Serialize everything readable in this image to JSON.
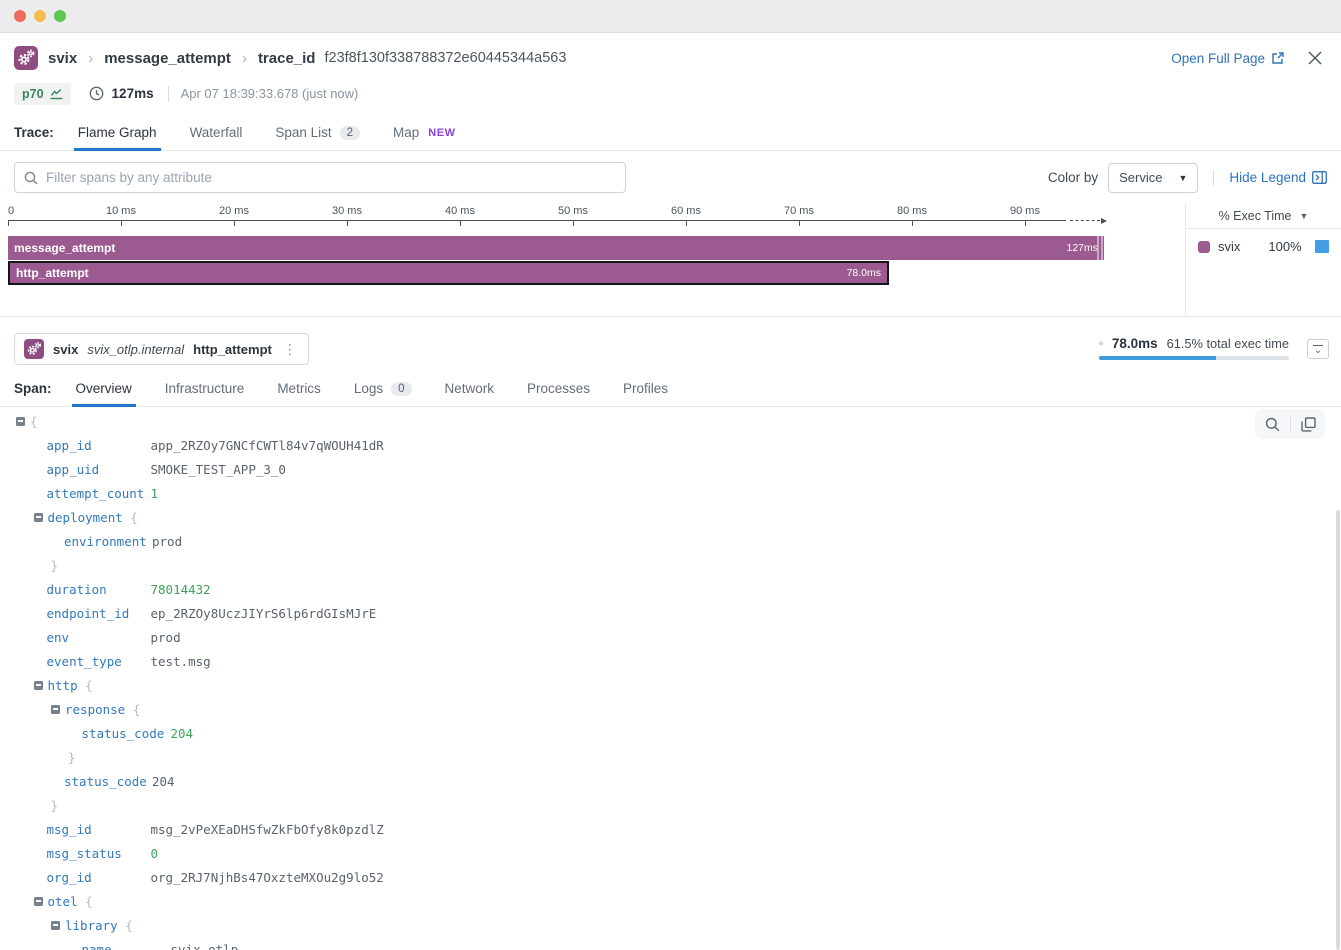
{
  "window": {
    "buttons": [
      "close",
      "minimize",
      "zoom"
    ]
  },
  "breadcrumb": {
    "service": "svix",
    "operation": "message_attempt",
    "trace_label": "trace_id",
    "trace_id": "f23f8f130f338788372e60445344a563"
  },
  "actions": {
    "open_full_page": "Open Full Page"
  },
  "summary": {
    "percentile": "p70",
    "duration": "127ms",
    "timestamp": "Apr 07 18:39:33.678 (just now)"
  },
  "trace_tabs": {
    "label": "Trace:",
    "tabs": [
      {
        "label": "Flame Graph",
        "active": true
      },
      {
        "label": "Waterfall"
      },
      {
        "label": "Span List",
        "badge": "2"
      },
      {
        "label": "Map",
        "tag": "NEW"
      }
    ]
  },
  "toolbar": {
    "filter_placeholder": "Filter spans by any attribute",
    "color_by_label": "Color by",
    "color_by_value": "Service",
    "hide_legend": "Hide Legend"
  },
  "flame_graph": {
    "ruler_ticks": [
      "0",
      "10 ms",
      "20 ms",
      "30 ms",
      "40 ms",
      "50 ms",
      "60 ms",
      "70 ms",
      "80 ms",
      "90 ms"
    ],
    "spans": [
      {
        "name": "message_attempt",
        "duration_label": "127ms",
        "duration_ms": 127,
        "truncated": true,
        "selected": false
      },
      {
        "name": "http_attempt",
        "duration_label": "78.0ms",
        "duration_ms": 78,
        "truncated": false,
        "selected": true
      }
    ]
  },
  "legend": {
    "header": "% Exec Time",
    "rows": [
      {
        "service": "svix",
        "pct": "100%"
      }
    ]
  },
  "span_header": {
    "service": "svix",
    "resource": "svix_otlp.internal",
    "operation": "http_attempt",
    "duration": "78.0ms",
    "exec_note": "61.5% total exec time",
    "exec_pct": 61.5
  },
  "span_tabs": {
    "label": "Span:",
    "tabs": [
      {
        "label": "Overview",
        "active": true
      },
      {
        "label": "Infrastructure"
      },
      {
        "label": "Metrics"
      },
      {
        "label": "Logs",
        "badge": "0"
      },
      {
        "label": "Network"
      },
      {
        "label": "Processes"
      },
      {
        "label": "Profiles"
      }
    ]
  },
  "attributes": {
    "rows": [
      {
        "t": "open",
        "depth": 0,
        "key": null
      },
      {
        "t": "kv",
        "depth": 1,
        "key": "app_id",
        "value": "app_2RZOy7GNCfCWTl84v7qWOUH41dR",
        "vt": "str"
      },
      {
        "t": "kv",
        "depth": 1,
        "key": "app_uid",
        "value": "SMOKE_TEST_APP_3_0",
        "vt": "str"
      },
      {
        "t": "kv",
        "depth": 1,
        "key": "attempt_count",
        "value": "1",
        "vt": "num"
      },
      {
        "t": "open",
        "depth": 1,
        "key": "deployment"
      },
      {
        "t": "kv",
        "depth": 2,
        "key": "environment",
        "value": "prod",
        "vt": "str"
      },
      {
        "t": "close",
        "depth": 1
      },
      {
        "t": "kv",
        "depth": 1,
        "key": "duration",
        "value": "78014432",
        "vt": "num"
      },
      {
        "t": "kv",
        "depth": 1,
        "key": "endpoint_id",
        "value": "ep_2RZOy8UczJIYrS6lp6rdGIsMJrE",
        "vt": "str"
      },
      {
        "t": "kv",
        "depth": 1,
        "key": "env",
        "value": "prod",
        "vt": "str"
      },
      {
        "t": "kv",
        "depth": 1,
        "key": "event_type",
        "value": "test.msg",
        "vt": "str"
      },
      {
        "t": "open",
        "depth": 1,
        "key": "http"
      },
      {
        "t": "open",
        "depth": 2,
        "key": "response"
      },
      {
        "t": "kv",
        "depth": 3,
        "key": "status_code",
        "value": "204",
        "vt": "num"
      },
      {
        "t": "close",
        "depth": 2
      },
      {
        "t": "kv",
        "depth": 2,
        "key": "status_code",
        "value": "204",
        "vt": "str"
      },
      {
        "t": "close",
        "depth": 1
      },
      {
        "t": "kv",
        "depth": 1,
        "key": "msg_id",
        "value": "msg_2vPeXEaDHSfwZkFbOfy8k0pzdlZ",
        "vt": "str"
      },
      {
        "t": "kv",
        "depth": 1,
        "key": "msg_status",
        "value": "0",
        "vt": "num"
      },
      {
        "t": "kv",
        "depth": 1,
        "key": "org_id",
        "value": "org_2RJ7NjhBs47OxzteMXOu2g9lo52",
        "vt": "str"
      },
      {
        "t": "open",
        "depth": 1,
        "key": "otel"
      },
      {
        "t": "open",
        "depth": 2,
        "key": "library"
      },
      {
        "t": "kv",
        "depth": 3,
        "key": "name",
        "value": "svix-otlp",
        "vt": "str"
      }
    ]
  },
  "colors": {
    "flame_purple": "#9c5b90",
    "selected_border": "#15181b",
    "legend_bar_blue": "#42a0e2",
    "exec_fill_blue": "#3d9be0",
    "accent_blue": "#2e72ba",
    "active_tab_blue": "#2079c8",
    "key_blue": "#3279bd",
    "number_green": "#3da35c",
    "p70_green": "#37875d",
    "new_tag_purple": "#8d41d9"
  }
}
